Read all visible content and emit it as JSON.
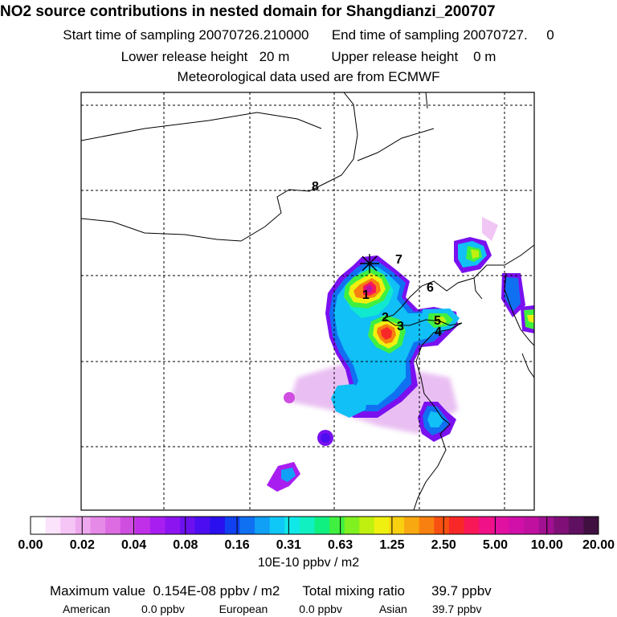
{
  "header": {
    "title": "NO2 source contributions in nested domain for Shangdianzi_200707",
    "start_label": "Start time of sampling",
    "start_value": "20070726.210000",
    "end_label": "End time of sampling",
    "end_value": "20070727.     0",
    "lower_label": "Lower release height",
    "lower_value": "20 m",
    "upper_label": "Upper release height",
    "upper_value": "0 m",
    "met_text": "Meteorological data used are from ECMWF"
  },
  "map": {
    "receptor_symbol": "asterisk",
    "labels": [
      "1",
      "2",
      "3",
      "4",
      "5",
      "6",
      "7",
      "8"
    ],
    "grid": "dashed"
  },
  "colorbar": {
    "tick_labels": [
      "0.00",
      "0.02",
      "0.04",
      "0.08",
      "0.16",
      "0.31",
      "0.63",
      "1.25",
      "2.50",
      "5.00",
      "10.00",
      "20.00"
    ],
    "colors": [
      "#ffffff",
      "#fbe3fb",
      "#f5c6f5",
      "#eea8ee",
      "#e68ae8",
      "#dd6ce3",
      "#cf4ee0",
      "#c030e8",
      "#a81ef0",
      "#8c14f0",
      "#6c10ef",
      "#4c0ef0",
      "#2a10ee",
      "#1040f0",
      "#1070f2",
      "#10a0f5",
      "#10c8f8",
      "#10e8e8",
      "#10f0c0",
      "#10f080",
      "#40f040",
      "#80f020",
      "#c0f010",
      "#f0f010",
      "#f8d010",
      "#f8a810",
      "#f88010",
      "#f85010",
      "#f82828",
      "#f81858",
      "#f01088",
      "#e010a0",
      "#d010a8",
      "#c010a0",
      "#a01090",
      "#801078",
      "#601060",
      "#401040"
    ],
    "units": "10E-10 ppbv / m2"
  },
  "stats": {
    "max_label": "Maximum value",
    "max_value": "0.154E-08 ppbv / m2",
    "total_label": "Total mixing ratio",
    "total_value": "39.7 ppbv",
    "american_label": "American",
    "american_value": "0.0 ppbv",
    "european_label": "European",
    "european_value": "0.0 ppbv",
    "asian_label": "Asian",
    "asian_value": "39.7 ppbv"
  }
}
